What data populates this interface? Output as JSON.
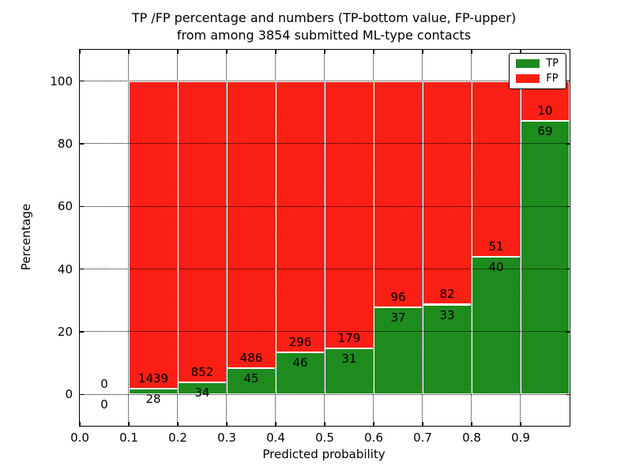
{
  "figure": {
    "title_line1": "TP /FP percentage and numbers (TP-bottom value, FP-upper)",
    "title_line2": "from among 3854 submitted ML-type contacts",
    "xlabel": "Predicted probability",
    "ylabel": "Percentage"
  },
  "legend": {
    "items": [
      {
        "label": "TP",
        "color": "#1e8b1e"
      },
      {
        "label": "FP",
        "color": "#fc1f15"
      }
    ]
  },
  "chart_data": {
    "type": "bar",
    "stacked": true,
    "normalized_to_percent": true,
    "title": "TP /FP percentage and numbers (TP-bottom value, FP-upper) from among 3854 submitted ML-type contacts",
    "xlabel": "Predicted probability",
    "ylabel": "Percentage",
    "xlim": [
      0.0,
      1.0
    ],
    "ylim": [
      -10,
      110
    ],
    "grid": true,
    "grid_style": "dotted-black-on-top",
    "legend_position": "upper right",
    "xticks": [
      "0.0",
      "0.1",
      "0.2",
      "0.3",
      "0.4",
      "0.5",
      "0.6",
      "0.7",
      "0.8",
      "0.9"
    ],
    "xtick_values": [
      0.0,
      0.1,
      0.2,
      0.3,
      0.4,
      0.5,
      0.6,
      0.7,
      0.8,
      0.9
    ],
    "yticks": [
      "0",
      "20",
      "40",
      "60",
      "80",
      "100"
    ],
    "ytick_values": [
      0,
      20,
      40,
      60,
      80,
      100
    ],
    "categories": [
      "0.0-0.1",
      "0.1-0.2",
      "0.2-0.3",
      "0.3-0.4",
      "0.4-0.5",
      "0.5-0.6",
      "0.6-0.7",
      "0.7-0.8",
      "0.8-0.9",
      "0.9-1.0"
    ],
    "bin_edges": [
      0.0,
      0.1,
      0.2,
      0.3,
      0.4,
      0.5,
      0.6,
      0.7,
      0.8,
      0.9,
      1.0
    ],
    "series": [
      {
        "name": "TP",
        "color": "#1e8b1e",
        "counts": [
          0,
          28,
          34,
          45,
          46,
          31,
          37,
          33,
          40,
          69
        ]
      },
      {
        "name": "FP",
        "color": "#fc1f15",
        "counts": [
          0,
          1439,
          852,
          486,
          296,
          179,
          96,
          82,
          51,
          10
        ]
      }
    ],
    "tp_percent": [
      null,
      1.908,
      3.837,
      8.475,
      13.45,
      14.762,
      27.82,
      28.696,
      43.956,
      87.342
    ],
    "bar_edge_color": "#ffffff",
    "label_offset_pct": 3.3,
    "total_contacts": 3854
  }
}
